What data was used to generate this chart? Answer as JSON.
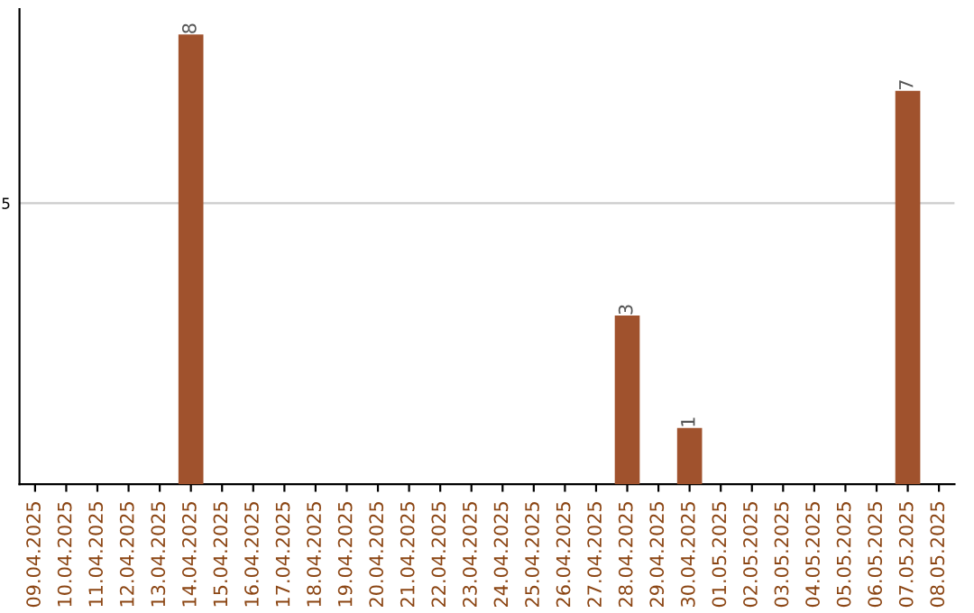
{
  "chart_data": {
    "type": "bar",
    "categories": [
      "09.04.2025",
      "10.04.2025",
      "11.04.2025",
      "12.04.2025",
      "13.04.2025",
      "14.04.2025",
      "15.04.2025",
      "16.04.2025",
      "17.04.2025",
      "18.04.2025",
      "19.04.2025",
      "20.04.2025",
      "21.04.2025",
      "22.04.2025",
      "23.04.2025",
      "24.04.2025",
      "25.04.2025",
      "26.04.2025",
      "27.04.2025",
      "28.04.2025",
      "29.04.2025",
      "30.04.2025",
      "01.05.2025",
      "02.05.2025",
      "03.05.2025",
      "04.05.2025",
      "05.05.2025",
      "06.05.2025",
      "07.05.2025",
      "08.05.2025"
    ],
    "values": [
      0,
      0,
      0,
      0,
      0,
      8,
      0,
      0,
      0,
      0,
      0,
      0,
      0,
      0,
      0,
      0,
      0,
      0,
      0,
      3,
      0,
      1,
      0,
      0,
      0,
      0,
      0,
      0,
      7,
      0
    ],
    "value_labels": [
      null,
      null,
      null,
      null,
      null,
      "8",
      null,
      null,
      null,
      null,
      null,
      null,
      null,
      null,
      null,
      null,
      null,
      null,
      null,
      "3",
      null,
      "1",
      null,
      null,
      null,
      null,
      null,
      null,
      "7",
      null
    ],
    "color": "#a0522d",
    "ylim": [
      0,
      8.45
    ],
    "yticks": [
      5
    ],
    "grid": "y"
  }
}
